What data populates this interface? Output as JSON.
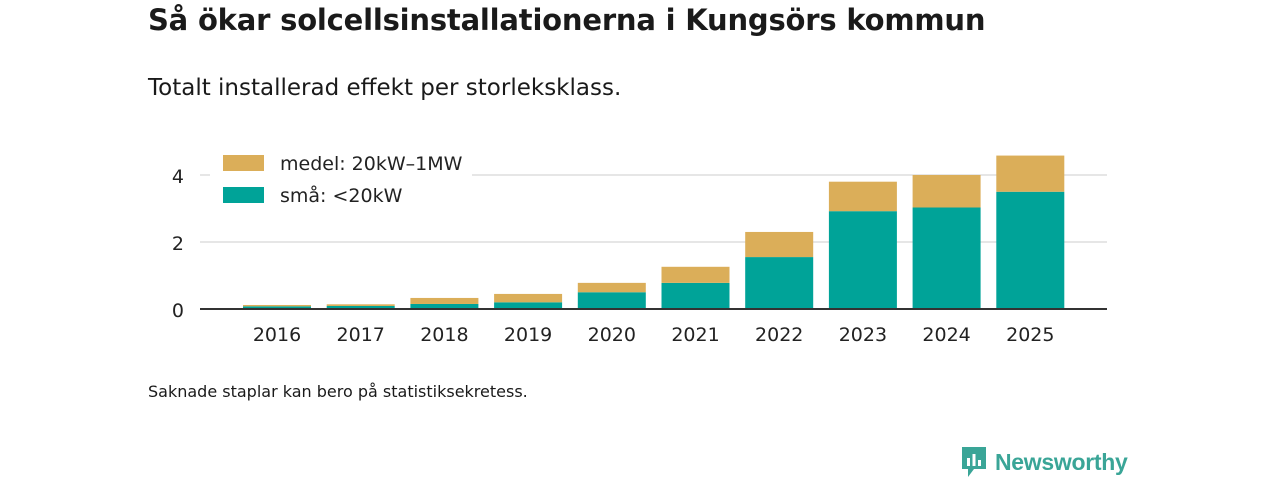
{
  "title": "Så ökar solcellsinstallationerna i Kungsörs kommun",
  "subtitle": "Totalt installerad effekt per storleksklass.",
  "footnote": "Saknade staplar kan bero på statistiksekretess.",
  "brand": {
    "name": "Newsworthy",
    "color": "#3aa597"
  },
  "chart_data": {
    "type": "bar",
    "stacked": true,
    "categories": [
      "2016",
      "2017",
      "2018",
      "2019",
      "2020",
      "2021",
      "2022",
      "2023",
      "2024",
      "2025"
    ],
    "series": [
      {
        "name": "små: <20kW",
        "color": "#00a398",
        "values": [
          0.08,
          0.09,
          0.15,
          0.2,
          0.5,
          0.78,
          1.55,
          2.92,
          3.03,
          3.5
        ]
      },
      {
        "name": "medel: 20kW–1MW",
        "color": "#dbae59",
        "values": [
          0.04,
          0.05,
          0.18,
          0.25,
          0.28,
          0.48,
          0.75,
          0.88,
          0.97,
          1.08
        ]
      }
    ],
    "legend_order": [
      "medel: 20kW–1MW",
      "små: <20kW"
    ],
    "legend_position": "top-left",
    "ylim": [
      0,
      4.8
    ],
    "yticks": [
      0,
      2,
      4
    ],
    "grid": true,
    "xlabel": "",
    "ylabel": ""
  }
}
